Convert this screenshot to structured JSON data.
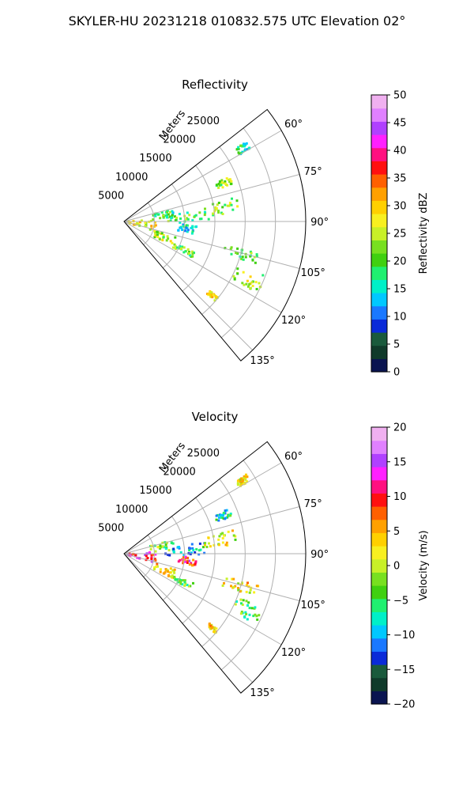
{
  "figure": {
    "title": "SKYLER-HU  20231218  010832.575 UTC Elevation 02°"
  },
  "chart_data": [
    {
      "type": "heatmap",
      "projection": "polar-sector",
      "title": "Reflectivity",
      "r_axis_label": "Meters",
      "r_ticks": [
        5000,
        10000,
        15000,
        20000,
        25000
      ],
      "r_tick_labels": [
        "5000",
        "10000",
        "15000",
        "20000",
        "25000"
      ],
      "r_max": 30000,
      "theta_range": [
        52,
        140
      ],
      "theta_ticks": [
        60,
        75,
        90,
        105,
        120,
        135
      ],
      "theta_tick_labels": [
        "60°",
        "75°",
        "90°",
        "105°",
        "120°",
        "135°"
      ],
      "grid": true,
      "colorbar": {
        "label": "Reflectivity dBZ",
        "range": [
          0,
          50
        ],
        "ticks": [
          0,
          5,
          10,
          15,
          20,
          25,
          30,
          35,
          40,
          45,
          50
        ],
        "tick_labels": [
          "0",
          "5",
          "10",
          "15",
          "20",
          "25",
          "30",
          "35",
          "40",
          "45",
          "50"
        ],
        "colors": [
          "#0a1450",
          "#103a2a",
          "#1a5a3c",
          "#0a2ad8",
          "#1a78ff",
          "#00c8ff",
          "#00f0c8",
          "#20f070",
          "#40d010",
          "#78e020",
          "#c8f028",
          "#f8f020",
          "#ffd000",
          "#ffa000",
          "#ff6000",
          "#ff1010",
          "#ff1080",
          "#ff20ff",
          "#b040ff",
          "#e080ff",
          "#f0b0f0"
        ]
      },
      "echoes": [
        {
          "range": [
            500,
            5500
          ],
          "az_range": [
            86,
            108
          ],
          "value": 27
        },
        {
          "range": [
            4500,
            8500
          ],
          "az_range": [
            74,
            86
          ],
          "value": 19
        },
        {
          "range": [
            6500,
            14000
          ],
          "az_range": [
            82,
            92
          ],
          "value": 20
        },
        {
          "range": [
            9000,
            12000
          ],
          "az_range": [
            93,
            100
          ],
          "value": 14
        },
        {
          "range": [
            5500,
            9000
          ],
          "az_range": [
            107,
            117
          ],
          "value": 24
        },
        {
          "range": [
            9000,
            13000
          ],
          "az_range": [
            113,
            118
          ],
          "value": 21
        },
        {
          "range": [
            17000,
            23000
          ],
          "az_range": [
            103,
            108
          ],
          "value": 20
        },
        {
          "range": [
            20000,
            25000
          ],
          "az_range": [
            111,
            118
          ],
          "value": 24
        },
        {
          "range": [
            13000,
            19000
          ],
          "az_range": [
            78,
            86
          ],
          "value": 22
        },
        {
          "range": [
            16000,
            19000
          ],
          "az_range": [
            67,
            71
          ],
          "value": 23
        },
        {
          "range": [
            22000,
            24000
          ],
          "az_range": [
            57,
            60
          ],
          "value": 17
        },
        {
          "range": [
            18000,
            20000
          ],
          "az_range": [
            129,
            131
          ],
          "value": 28
        }
      ]
    },
    {
      "type": "heatmap",
      "projection": "polar-sector",
      "title": "Velocity",
      "r_axis_label": "Meters",
      "r_ticks": [
        5000,
        10000,
        15000,
        20000,
        25000
      ],
      "r_tick_labels": [
        "5000",
        "10000",
        "15000",
        "20000",
        "25000"
      ],
      "r_max": 30000,
      "theta_range": [
        52,
        140
      ],
      "theta_ticks": [
        60,
        75,
        90,
        105,
        120,
        135
      ],
      "theta_tick_labels": [
        "60°",
        "75°",
        "90°",
        "105°",
        "120°",
        "135°"
      ],
      "grid": true,
      "colorbar": {
        "label": "Velocity (m/s)",
        "range": [
          -20,
          20
        ],
        "ticks": [
          -20,
          -15,
          -10,
          -5,
          0,
          5,
          10,
          15,
          20
        ],
        "tick_labels": [
          "−20",
          "−15",
          "−10",
          "−5",
          "0",
          "5",
          "10",
          "15",
          "20"
        ],
        "colors": [
          "#0a1450",
          "#103a2a",
          "#1a5a3c",
          "#0a2ad8",
          "#1a78ff",
          "#00c8ff",
          "#00f0c8",
          "#20f070",
          "#40d010",
          "#78e020",
          "#c8f028",
          "#f8f020",
          "#ffd000",
          "#ffa000",
          "#ff6000",
          "#ff1010",
          "#ff1080",
          "#ff20ff",
          "#b040ff",
          "#e080ff",
          "#f0b0f0"
        ]
      },
      "echoes": [
        {
          "range": [
            500,
            5500
          ],
          "az_range": [
            86,
            108
          ],
          "value": 12
        },
        {
          "range": [
            4500,
            8500
          ],
          "az_range": [
            74,
            86
          ],
          "value": -3
        },
        {
          "range": [
            6500,
            14000
          ],
          "az_range": [
            82,
            92
          ],
          "value": -10
        },
        {
          "range": [
            9000,
            12000
          ],
          "az_range": [
            93,
            100
          ],
          "value": 10
        },
        {
          "range": [
            5500,
            9000
          ],
          "az_range": [
            107,
            117
          ],
          "value": 3
        },
        {
          "range": [
            9000,
            13000
          ],
          "az_range": [
            113,
            118
          ],
          "value": -3
        },
        {
          "range": [
            17000,
            23000
          ],
          "az_range": [
            103,
            108
          ],
          "value": 3
        },
        {
          "range": [
            20000,
            25000
          ],
          "az_range": [
            111,
            118
          ],
          "value": -4
        },
        {
          "range": [
            13000,
            19000
          ],
          "az_range": [
            78,
            86
          ],
          "value": 1
        },
        {
          "range": [
            16000,
            19000
          ],
          "az_range": [
            67,
            71
          ],
          "value": -7
        },
        {
          "range": [
            22000,
            24000
          ],
          "az_range": [
            57,
            60
          ],
          "value": 2
        },
        {
          "range": [
            18000,
            20000
          ],
          "az_range": [
            129,
            131
          ],
          "value": 4
        }
      ]
    }
  ]
}
